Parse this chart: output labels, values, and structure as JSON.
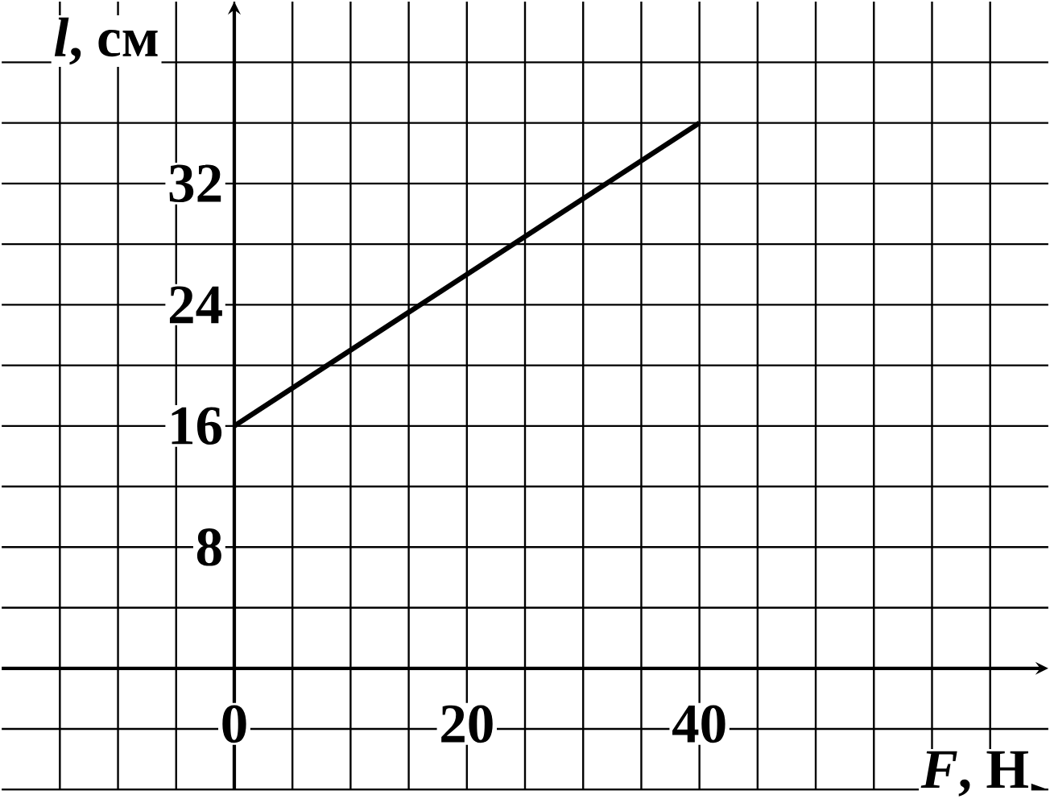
{
  "chart_data": {
    "type": "line",
    "xlabel": "*F*, Н",
    "ylabel": "*l*, см",
    "x": [
      0,
      40
    ],
    "series": [
      {
        "color": "#000000",
        "values": [
          16,
          36
        ]
      }
    ],
    "xlim": [
      -20,
      70
    ],
    "ylim": [
      -8,
      44
    ],
    "xticks": [
      {
        "value": -15,
        "label": null
      },
      {
        "value": -10,
        "label": null
      },
      {
        "value": -5,
        "label": null
      },
      0,
      {
        "value": 5,
        "label": null
      },
      {
        "value": 10,
        "label": null
      },
      {
        "value": 15,
        "label": null
      },
      20,
      {
        "value": 25,
        "label": null
      },
      {
        "value": 30,
        "label": null
      },
      {
        "value": 35,
        "label": null
      },
      40,
      {
        "value": 45,
        "label": null
      },
      {
        "value": 50,
        "label": null
      },
      {
        "value": 55,
        "label": null
      },
      {
        "value": 60,
        "label": null
      },
      {
        "value": 65,
        "label": null
      }
    ],
    "yticks": [
      {
        "value": -8,
        "label": null
      },
      {
        "value": -4,
        "label": null
      },
      {
        "value": 4,
        "label": null
      },
      8,
      {
        "value": 12,
        "label": null
      },
      16,
      {
        "value": 20,
        "label": null
      },
      24,
      {
        "value": 28,
        "label": null
      },
      32,
      {
        "value": 36,
        "label": null
      },
      {
        "value": 40,
        "label": null
      }
    ],
    "grid": true,
    "marker": "none",
    "line_style": "solid"
  }
}
